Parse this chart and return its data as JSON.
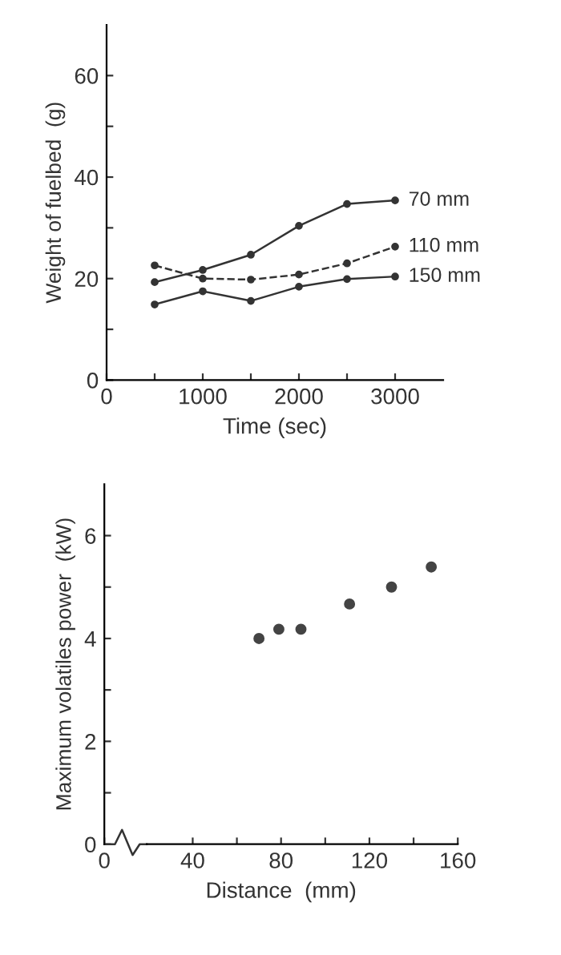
{
  "chart_data": [
    {
      "type": "line",
      "xlabel": "Time (sec)",
      "ylabel": "Weight of fuelbed  (g)",
      "xlim": [
        0,
        3500
      ],
      "ylim": [
        0,
        70
      ],
      "xticks": [
        0,
        {
          "value": 500,
          "label": null
        },
        1000,
        {
          "value": 1500,
          "label": null
        },
        2000,
        {
          "value": 2500,
          "label": null
        },
        3000
      ],
      "yticks": [
        0,
        {
          "value": 10,
          "label": null
        },
        20,
        {
          "value": 30,
          "label": null
        },
        40,
        {
          "value": 50,
          "label": null
        },
        60
      ],
      "marker": "circle",
      "grid": false,
      "legend": false,
      "series": [
        {
          "name": "70 mm",
          "color": "#333333",
          "line_style": "solid",
          "x": [
            500,
            1000,
            1500,
            2000,
            2500,
            3000
          ],
          "values": [
            19.3,
            21.7,
            24.7,
            30.4,
            34.7,
            35.4
          ]
        },
        {
          "name": "110 mm",
          "color": "#333333",
          "line_style": "dashed",
          "x": [
            500,
            1000,
            1500,
            2000,
            2500,
            3000
          ],
          "values": [
            22.6,
            20.0,
            19.8,
            20.8,
            23.0,
            26.3
          ]
        },
        {
          "name": "150 mm",
          "color": "#333333",
          "line_style": "solid",
          "x": [
            500,
            1000,
            1500,
            2000,
            2500,
            3000
          ],
          "values": [
            14.9,
            17.5,
            15.6,
            18.4,
            19.9,
            20.4
          ]
        }
      ]
    },
    {
      "type": "scatter",
      "xlabel": "Distance  (mm)",
      "ylabel": "Maximum volatiles power  (kW)",
      "xlim": [
        0,
        160
      ],
      "ylim": [
        0,
        7
      ],
      "xticks": [
        0,
        40,
        {
          "value": 60,
          "label": null
        },
        80,
        {
          "value": 100,
          "label": null
        },
        120,
        {
          "value": 140,
          "label": null
        },
        160
      ],
      "yticks": [
        0,
        {
          "value": 1,
          "label": null
        },
        2,
        {
          "value": 3,
          "label": null
        },
        4,
        {
          "value": 5,
          "label": null
        },
        6
      ],
      "marker": "circle",
      "grid": false,
      "legend": false,
      "series": [
        {
          "color": "#444444",
          "x": [
            70,
            79,
            89,
            111,
            130,
            148
          ],
          "values": [
            4.0,
            4.18,
            4.18,
            4.67,
            5.0,
            5.39
          ]
        }
      ]
    }
  ]
}
